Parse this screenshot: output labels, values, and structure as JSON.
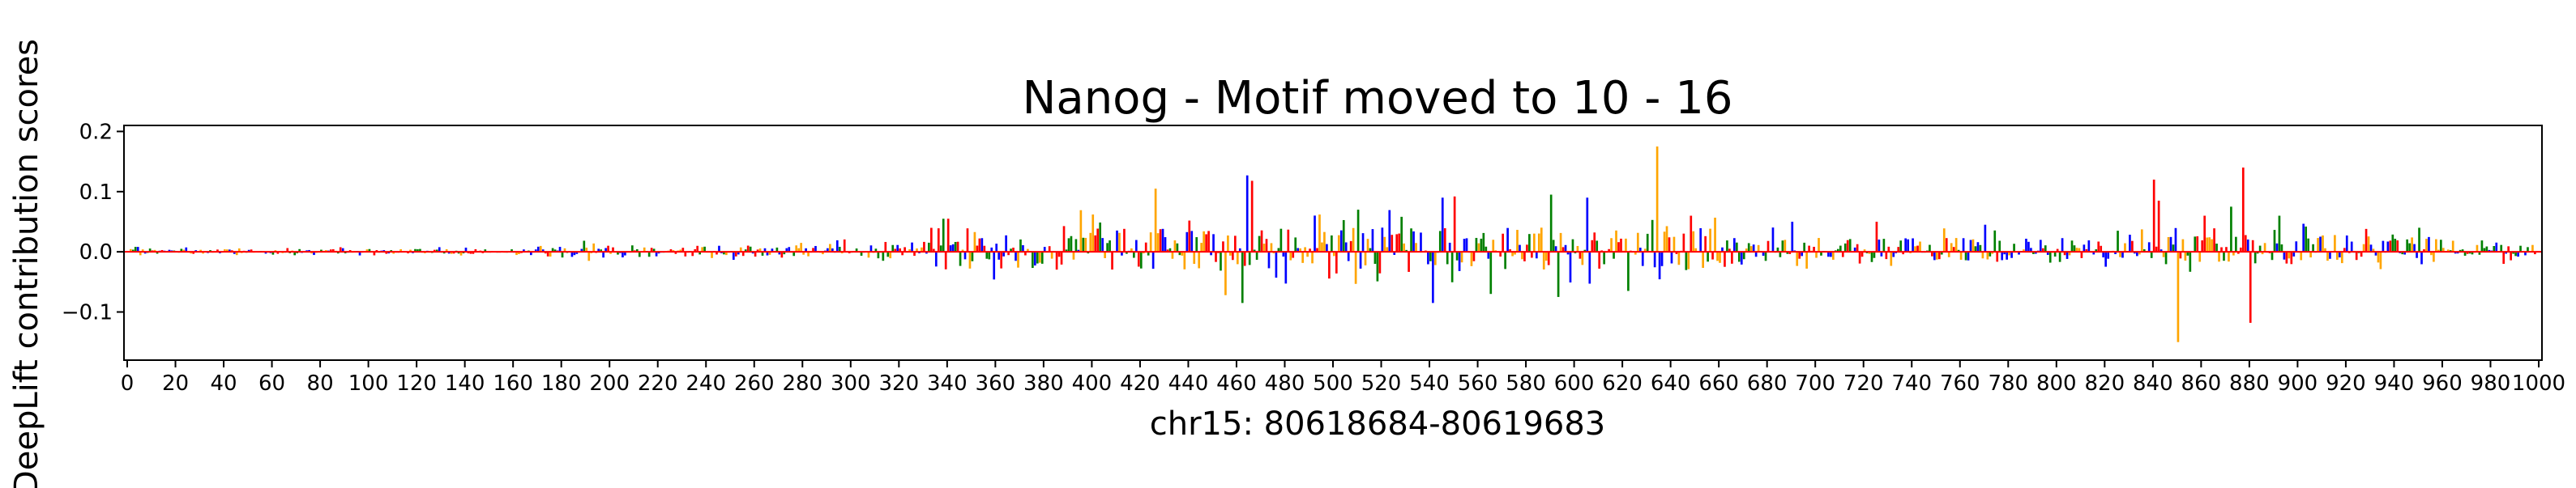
{
  "chart_data": {
    "type": "bar",
    "title": "Nanog - Motif moved to 10 - 16",
    "xlabel": "chr15: 80618684-80619683",
    "ylabel": "DeepLift contribution scores",
    "xlim": [
      0,
      1000
    ],
    "ylim": [
      -0.18,
      0.21
    ],
    "x_ticks": [
      "0",
      "20",
      "40",
      "60",
      "80",
      "100",
      "120",
      "140",
      "160",
      "180",
      "200",
      "220",
      "240",
      "260",
      "280",
      "300",
      "320",
      "340",
      "360",
      "380",
      "400",
      "420",
      "440",
      "460",
      "480",
      "500",
      "520",
      "540",
      "560",
      "580",
      "600",
      "620",
      "640",
      "660",
      "680",
      "700",
      "720",
      "740",
      "760",
      "780",
      "800",
      "820",
      "840",
      "860",
      "880",
      "900",
      "920",
      "940",
      "960",
      "980",
      "1000"
    ],
    "y_ticks": [
      "0.2",
      "0.1",
      "0.0",
      "−0.1"
    ],
    "grid": false,
    "colors": {
      "A": "#008000",
      "C": "#0000ff",
      "G": "#ffa500",
      "T": "#ff0000"
    },
    "peaks": [
      {
        "x": 464,
        "value": 0.127,
        "base": "C"
      },
      {
        "x": 466,
        "value": 0.118,
        "base": "T"
      },
      {
        "x": 455,
        "value": -0.072,
        "base": "G"
      },
      {
        "x": 462,
        "value": -0.085,
        "base": "A"
      },
      {
        "x": 426,
        "value": 0.105,
        "base": "G"
      },
      {
        "x": 400,
        "value": 0.062,
        "base": "G"
      },
      {
        "x": 340,
        "value": 0.055,
        "base": "T"
      },
      {
        "x": 545,
        "value": 0.09,
        "base": "C"
      },
      {
        "x": 550,
        "value": 0.092,
        "base": "T"
      },
      {
        "x": 541,
        "value": -0.085,
        "base": "C"
      },
      {
        "x": 565,
        "value": -0.07,
        "base": "A"
      },
      {
        "x": 590,
        "value": 0.095,
        "base": "A"
      },
      {
        "x": 593,
        "value": -0.075,
        "base": "A"
      },
      {
        "x": 605,
        "value": 0.09,
        "base": "C"
      },
      {
        "x": 622,
        "value": -0.065,
        "base": "A"
      },
      {
        "x": 634,
        "value": 0.175,
        "base": "G"
      },
      {
        "x": 510,
        "value": 0.07,
        "base": "A"
      },
      {
        "x": 648,
        "value": 0.06,
        "base": "T"
      },
      {
        "x": 690,
        "value": 0.05,
        "base": "C"
      },
      {
        "x": 725,
        "value": 0.05,
        "base": "T"
      },
      {
        "x": 770,
        "value": 0.045,
        "base": "C"
      },
      {
        "x": 840,
        "value": 0.12,
        "base": "T"
      },
      {
        "x": 842,
        "value": 0.085,
        "base": "T"
      },
      {
        "x": 850,
        "value": -0.15,
        "base": "G"
      },
      {
        "x": 861,
        "value": 0.06,
        "base": "T"
      },
      {
        "x": 877,
        "value": 0.14,
        "base": "T"
      },
      {
        "x": 880,
        "value": -0.118,
        "base": "T"
      },
      {
        "x": 872,
        "value": 0.075,
        "base": "A"
      },
      {
        "x": 892,
        "value": 0.06,
        "base": "A"
      },
      {
        "x": 950,
        "value": 0.04,
        "base": "A"
      },
      {
        "x": 985,
        "value": -0.02,
        "base": "T"
      }
    ]
  }
}
